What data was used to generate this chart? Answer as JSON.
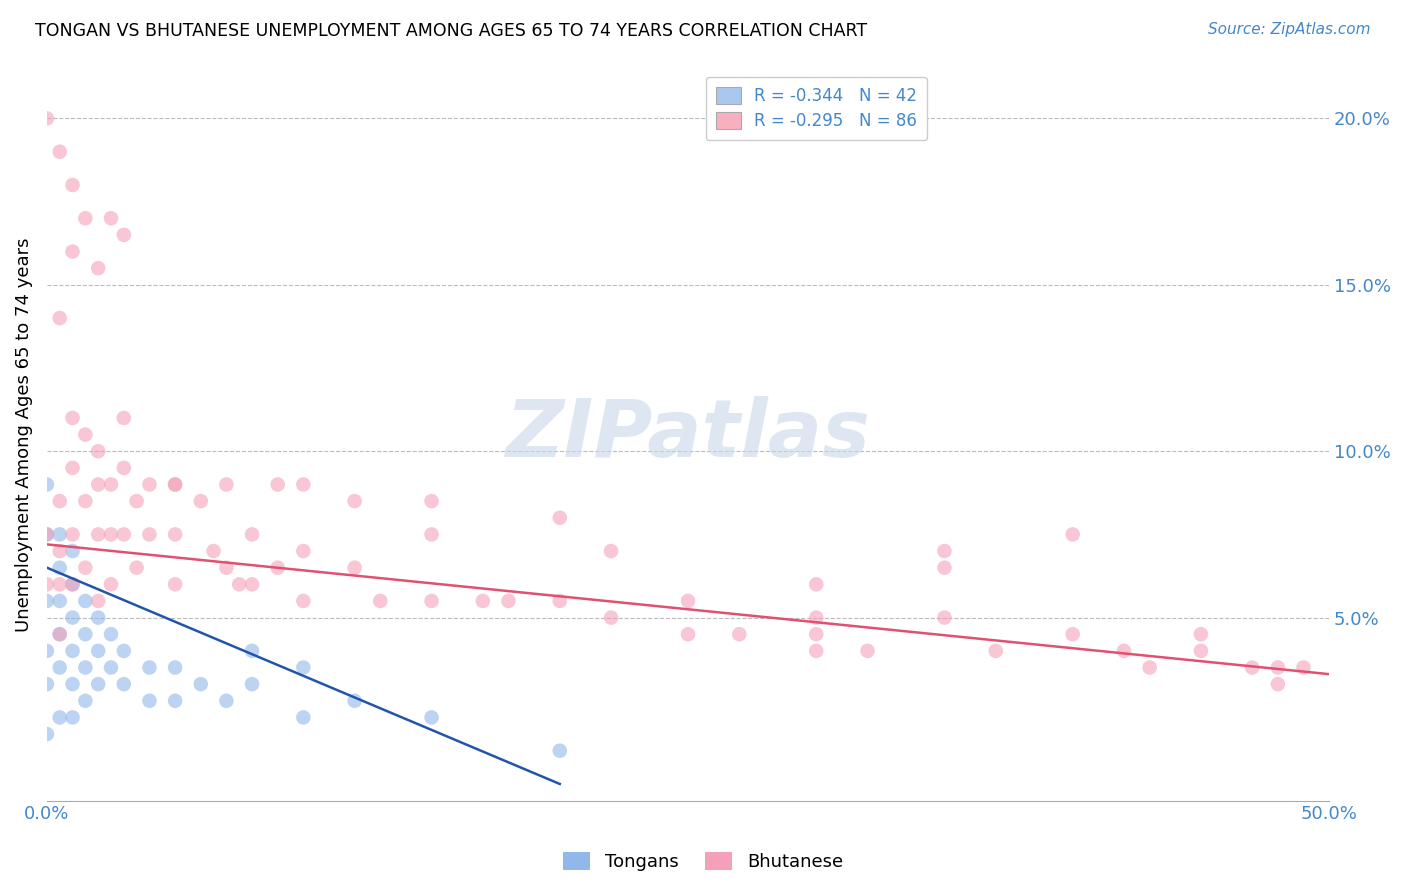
{
  "title": "TONGAN VS BHUTANESE UNEMPLOYMENT AMONG AGES 65 TO 74 YEARS CORRELATION CHART",
  "source": "Source: ZipAtlas.com",
  "ylabel": "Unemployment Among Ages 65 to 74 years",
  "xlim": [
    0.0,
    0.5
  ],
  "ylim": [
    -0.005,
    0.215
  ],
  "yticks_right": [
    0.05,
    0.1,
    0.15,
    0.2
  ],
  "ytick_labels_right": [
    "5.0%",
    "10.0%",
    "15.0%",
    "20.0%"
  ],
  "legend_entries": [
    {
      "label": "R = -0.344   N = 42",
      "color": "#a8c8f0"
    },
    {
      "label": "R = -0.295   N = 86",
      "color": "#f8b0c0"
    }
  ],
  "tongan_color": "#90b8e8",
  "bhutanese_color": "#f4a0b8",
  "tongan_line_color": "#2255aa",
  "bhutanese_line_color": "#e05070",
  "watermark": "ZIPatlas",
  "watermark_color": "#c8d8e8",
  "background_color": "#ffffff",
  "grid_color": "#bbbbbb",
  "tongan_x": [
    0.0,
    0.0,
    0.0,
    0.0,
    0.0,
    0.005,
    0.005,
    0.005,
    0.005,
    0.005,
    0.01,
    0.01,
    0.01,
    0.01,
    0.01,
    0.01,
    0.015,
    0.015,
    0.015,
    0.015,
    0.02,
    0.02,
    0.02,
    0.025,
    0.025,
    0.03,
    0.03,
    0.04,
    0.04,
    0.05,
    0.05,
    0.06,
    0.07,
    0.08,
    0.08,
    0.1,
    0.1,
    0.12,
    0.15,
    0.2,
    0.0,
    0.005
  ],
  "tongan_y": [
    0.075,
    0.055,
    0.04,
    0.03,
    0.015,
    0.065,
    0.055,
    0.045,
    0.035,
    0.02,
    0.07,
    0.06,
    0.05,
    0.04,
    0.03,
    0.02,
    0.055,
    0.045,
    0.035,
    0.025,
    0.05,
    0.04,
    0.03,
    0.045,
    0.035,
    0.04,
    0.03,
    0.035,
    0.025,
    0.035,
    0.025,
    0.03,
    0.025,
    0.04,
    0.03,
    0.035,
    0.02,
    0.025,
    0.02,
    0.01,
    0.09,
    0.075
  ],
  "bhutanese_x": [
    0.0,
    0.0,
    0.005,
    0.005,
    0.005,
    0.005,
    0.01,
    0.01,
    0.01,
    0.01,
    0.015,
    0.015,
    0.015,
    0.02,
    0.02,
    0.02,
    0.02,
    0.025,
    0.025,
    0.025,
    0.03,
    0.03,
    0.03,
    0.035,
    0.035,
    0.04,
    0.04,
    0.05,
    0.05,
    0.05,
    0.06,
    0.065,
    0.07,
    0.075,
    0.08,
    0.08,
    0.09,
    0.1,
    0.1,
    0.1,
    0.12,
    0.13,
    0.15,
    0.15,
    0.17,
    0.18,
    0.2,
    0.22,
    0.22,
    0.25,
    0.27,
    0.3,
    0.3,
    0.32,
    0.35,
    0.37,
    0.4,
    0.42,
    0.43,
    0.45,
    0.47,
    0.48,
    0.49,
    0.005,
    0.01,
    0.015,
    0.02,
    0.025,
    0.03,
    0.05,
    0.07,
    0.09,
    0.12,
    0.15,
    0.2,
    0.25,
    0.3,
    0.35,
    0.3,
    0.35,
    0.4,
    0.45,
    0.48,
    0.0,
    0.005,
    0.01
  ],
  "bhutanese_y": [
    0.075,
    0.06,
    0.085,
    0.07,
    0.06,
    0.045,
    0.11,
    0.095,
    0.075,
    0.06,
    0.105,
    0.085,
    0.065,
    0.1,
    0.09,
    0.075,
    0.055,
    0.09,
    0.075,
    0.06,
    0.11,
    0.095,
    0.075,
    0.085,
    0.065,
    0.09,
    0.075,
    0.09,
    0.075,
    0.06,
    0.085,
    0.07,
    0.065,
    0.06,
    0.075,
    0.06,
    0.065,
    0.09,
    0.07,
    0.055,
    0.065,
    0.055,
    0.075,
    0.055,
    0.055,
    0.055,
    0.055,
    0.07,
    0.05,
    0.055,
    0.045,
    0.05,
    0.04,
    0.04,
    0.05,
    0.04,
    0.045,
    0.04,
    0.035,
    0.045,
    0.035,
    0.03,
    0.035,
    0.14,
    0.16,
    0.17,
    0.155,
    0.17,
    0.165,
    0.09,
    0.09,
    0.09,
    0.085,
    0.085,
    0.08,
    0.045,
    0.045,
    0.065,
    0.06,
    0.07,
    0.075,
    0.04,
    0.035,
    0.2,
    0.19,
    0.18
  ]
}
